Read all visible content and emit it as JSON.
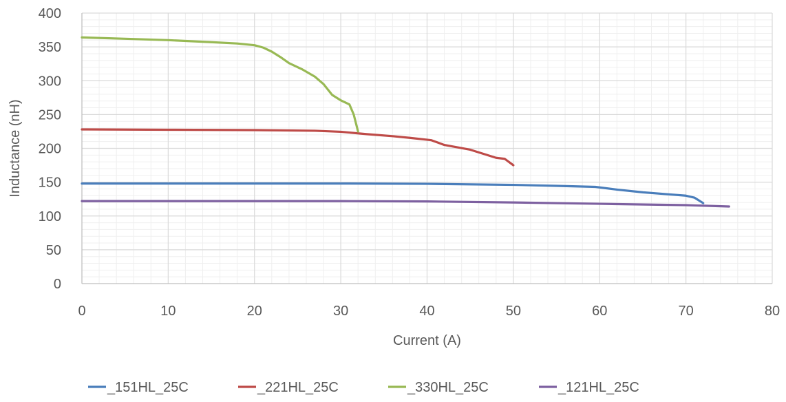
{
  "chart_data": {
    "type": "line",
    "title": "",
    "xlabel": "Current (A)",
    "ylabel": "Inductance (nH)",
    "xlim": [
      0,
      80
    ],
    "ylim": [
      0,
      400
    ],
    "x_ticks": [
      0,
      10,
      20,
      30,
      40,
      50,
      60,
      70,
      80
    ],
    "y_ticks": [
      0,
      50,
      100,
      150,
      200,
      250,
      300,
      350,
      400
    ],
    "x_tick_labels": [
      "0",
      "10",
      "20",
      "30",
      "40",
      "50",
      "60",
      "70",
      "80"
    ],
    "y_tick_labels": [
      "0",
      "50",
      "100",
      "150",
      "200",
      "250",
      "300",
      "350",
      "400"
    ],
    "grid": true,
    "legend_position": "bottom",
    "series": [
      {
        "name": "_151HL_25C",
        "color": "#4a7ebb",
        "points": [
          [
            0,
            148
          ],
          [
            10,
            148
          ],
          [
            20,
            148
          ],
          [
            30,
            148
          ],
          [
            40,
            147.5
          ],
          [
            50,
            146
          ],
          [
            55,
            144.5
          ],
          [
            59.5,
            143
          ],
          [
            62,
            139
          ],
          [
            65,
            135
          ],
          [
            68,
            132
          ],
          [
            70,
            130
          ],
          [
            71,
            127
          ],
          [
            72,
            119
          ]
        ]
      },
      {
        "name": "_221HL_25C",
        "color": "#be4b48",
        "points": [
          [
            0,
            228
          ],
          [
            10,
            227.5
          ],
          [
            20,
            227
          ],
          [
            27,
            226
          ],
          [
            30,
            224.5
          ],
          [
            33,
            221
          ],
          [
            36,
            218
          ],
          [
            38,
            215.5
          ],
          [
            40.5,
            212
          ],
          [
            42,
            205
          ],
          [
            45,
            198
          ],
          [
            46.5,
            192
          ],
          [
            48,
            186
          ],
          [
            49,
            184.5
          ],
          [
            50,
            175
          ]
        ]
      },
      {
        "name": "_330HL_25C",
        "color": "#98b954",
        "points": [
          [
            0,
            364
          ],
          [
            5,
            362
          ],
          [
            10,
            360
          ],
          [
            15,
            357
          ],
          [
            18,
            355
          ],
          [
            20,
            352.5
          ],
          [
            21,
            349
          ],
          [
            22,
            343
          ],
          [
            23,
            335
          ],
          [
            24,
            326
          ],
          [
            25.5,
            317
          ],
          [
            27,
            306
          ],
          [
            28,
            295
          ],
          [
            29,
            279
          ],
          [
            30,
            271
          ],
          [
            31,
            265
          ],
          [
            31.5,
            250
          ],
          [
            32,
            225
          ]
        ]
      },
      {
        "name": "_121HL_25C",
        "color": "#7d60a0",
        "points": [
          [
            0,
            122
          ],
          [
            10,
            122
          ],
          [
            20,
            122
          ],
          [
            30,
            122
          ],
          [
            40,
            121.5
          ],
          [
            50,
            120
          ],
          [
            60,
            118
          ],
          [
            70,
            116
          ],
          [
            75,
            114
          ]
        ]
      }
    ]
  }
}
